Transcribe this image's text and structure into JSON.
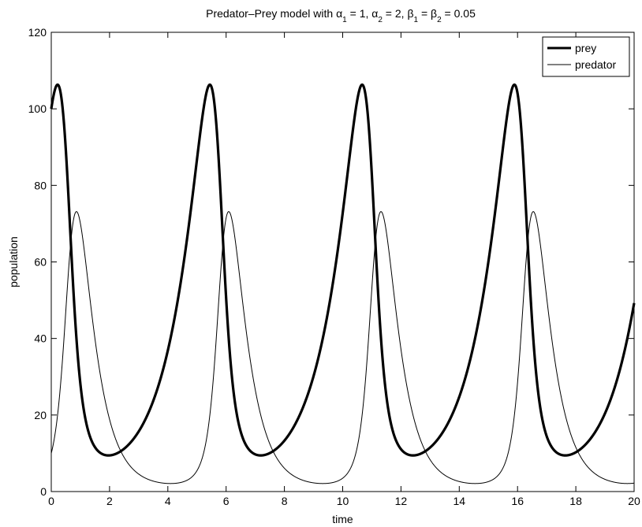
{
  "chart_data": {
    "type": "line",
    "title_parts": {
      "prefix": "Predator–Prey model with ",
      "a1_sym": "α",
      "a1_sub": "1",
      "a1_rest": " = 1, ",
      "a2_sym": "α",
      "a2_sub": "2",
      "a2_rest": " = 2, ",
      "b1_sym": "β",
      "b1_sub": "1",
      "b1_rest": " = ",
      "b2_sym": "β",
      "b2_sub": "2",
      "b2_rest": " = 0.05"
    },
    "xlabel": "time",
    "ylabel": "population",
    "xlim": [
      0,
      20
    ],
    "ylim": [
      0,
      120
    ],
    "xticks": [
      0,
      2,
      4,
      6,
      8,
      10,
      12,
      14,
      16,
      18,
      20
    ],
    "yticks": [
      0,
      20,
      40,
      60,
      80,
      100,
      120
    ],
    "grid": false,
    "legend_position": "top-right",
    "model": {
      "alpha1": 1,
      "alpha2": 2,
      "beta1": 0.05,
      "beta2": 0.05,
      "prey0": 100,
      "predator0": 10,
      "t_start": 0,
      "t_end": 20
    },
    "series": [
      {
        "name": "prey",
        "color": "#000000",
        "style": "thick"
      },
      {
        "name": "predator",
        "color": "#000000",
        "style": "thin"
      }
    ]
  }
}
